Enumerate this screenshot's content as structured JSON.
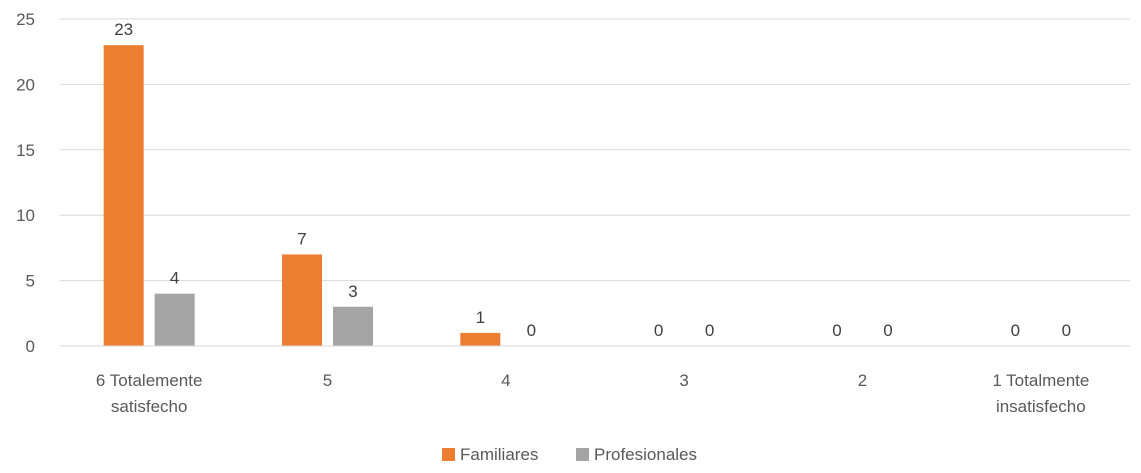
{
  "chart_data": {
    "type": "bar",
    "categories": [
      [
        "6 Totalemente",
        "satisfecho"
      ],
      [
        "5"
      ],
      [
        "4"
      ],
      [
        "3"
      ],
      [
        "2"
      ],
      [
        "1 Totalmente",
        "insatisfecho"
      ]
    ],
    "series": [
      {
        "name": "Familiares",
        "values": [
          23,
          7,
          1,
          0,
          0,
          0
        ],
        "color": "#ED7D31"
      },
      {
        "name": "Profesionales",
        "values": [
          4,
          3,
          0,
          0,
          0,
          0
        ],
        "color": "#A5A5A5"
      }
    ],
    "yticks": [
      0,
      5,
      10,
      15,
      20,
      25
    ],
    "ylim": [
      0,
      25
    ],
    "grid": true,
    "legend_position": "bottom",
    "data_labels": true,
    "title": "",
    "xlabel": "",
    "ylabel": ""
  }
}
